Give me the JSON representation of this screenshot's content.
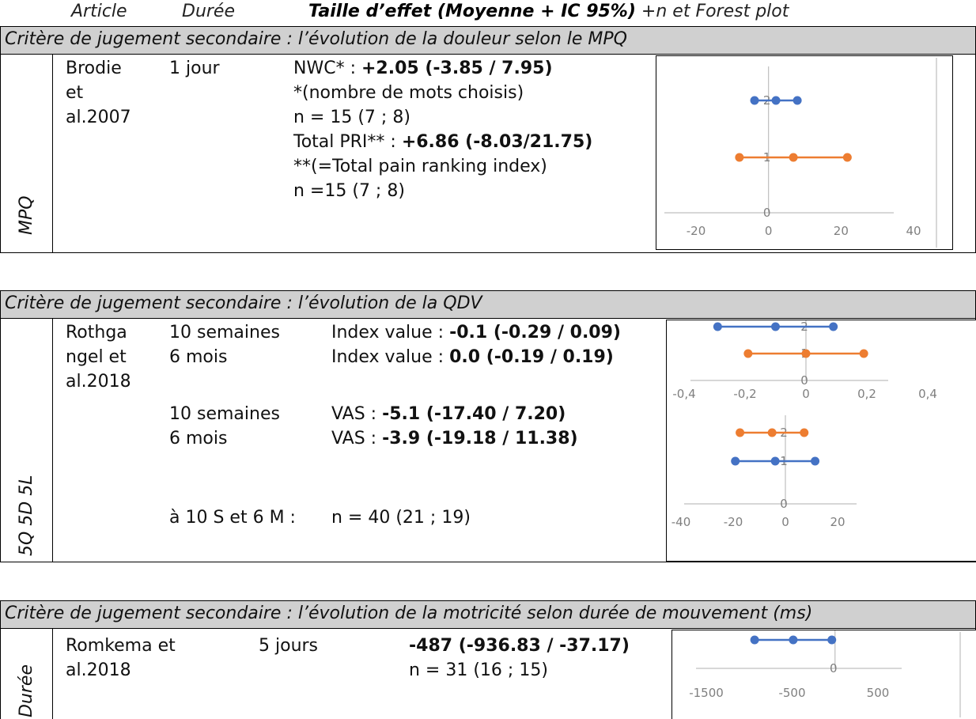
{
  "header": {
    "article": "Article",
    "duree": "Durée",
    "taille": "Taille d’effet (Moyenne + IC 95%)",
    "extra": "+n et Forest plot"
  },
  "sections": [
    {
      "title": "Critère de jugement secondaire : l’évolution de la douleur selon le MPQ",
      "side_label": "MPQ",
      "article_lines": [
        "Brodie",
        "et",
        "al.2007"
      ],
      "duree_lines": [
        "1 jour"
      ],
      "effect": {
        "l1_prefix": "NWC* : ",
        "l1_value": "+2.05 (-3.85 / 7.95)",
        "l2": "*(nombre de mots choisis)",
        "l3": "n = 15 (7 ; 8)",
        "l4_prefix": "Total PRI** : ",
        "l4_value": "+6.86 (-8.03/21.75)",
        "l5": "**(=Total pain ranking index)",
        "l6": "n =15 (7 ; 8)"
      }
    },
    {
      "title": "Critère de jugement secondaire : l’évolution de la QDV",
      "side_label": "5Q 5D 5L",
      "article_lines": [
        "Rothga",
        "ngel  et",
        "al.2018"
      ],
      "rows": [
        {
          "duree": "10 semaines",
          "prefix": "Index value : ",
          "value": "-0.1 (-0.29 / 0.09)"
        },
        {
          "duree": "6 mois",
          "prefix": "Index value : ",
          "value": "0.0 (-0.19 / 0.19)"
        },
        {
          "duree": "10 semaines",
          "prefix": "VAS : ",
          "value": "-5.1 (-17.40 / 7.20)"
        },
        {
          "duree": "6 mois",
          "prefix": "VAS : ",
          "value": "-3.9 (-19.18 / 11.38)"
        }
      ],
      "n_label": "à 10 S et 6 M :",
      "n_value": "n = 40 (21 ; 19)"
    },
    {
      "title": "Critère de jugement secondaire : l’évolution de la motricité selon durée de mouvement (ms)",
      "side_label": "Durée",
      "article": "Romkema      et",
      "article2": "al.2018",
      "duree": "5 jours",
      "value": "-487 (-936.83 / -37.17)",
      "n": "n = 31 (16 ; 15)"
    }
  ],
  "colors": {
    "blue": "#4472c4",
    "orange": "#ed7d31",
    "axis": "#bfbfbf",
    "header_bg": "#d0d0d0"
  },
  "chart_data": [
    {
      "type": "scatter",
      "xlim": [
        -20,
        40
      ],
      "ylim": [
        0,
        2
      ],
      "xticks": [
        "-20",
        "0",
        "20",
        "40"
      ],
      "yticks": [
        "0",
        "1",
        "2"
      ],
      "series": [
        {
          "color": "#4472c4",
          "y": 2,
          "x": [
            -3.85,
            2.05,
            7.95
          ]
        },
        {
          "color": "#ed7d31",
          "y": 1,
          "x": [
            -8.03,
            6.86,
            21.75
          ]
        }
      ]
    },
    {
      "type": "scatter",
      "xlim": [
        -0.4,
        0.4
      ],
      "ylim": [
        0,
        2
      ],
      "xticks": [
        "-0,4",
        "-0,2",
        "0",
        "0,2",
        "0,4"
      ],
      "yticks": [
        "0",
        "1",
        "2"
      ],
      "series": [
        {
          "color": "#4472c4",
          "y": 2,
          "x": [
            -0.29,
            -0.1,
            0.09
          ]
        },
        {
          "color": "#ed7d31",
          "y": 1,
          "x": [
            -0.19,
            0.0,
            0.19
          ]
        }
      ]
    },
    {
      "type": "scatter",
      "xlim": [
        -40,
        20
      ],
      "ylim": [
        0,
        2
      ],
      "xticks": [
        "-40",
        "-20",
        "0",
        "20"
      ],
      "yticks": [
        "0",
        "1",
        "2"
      ],
      "series": [
        {
          "color": "#ed7d31",
          "y": 2,
          "x": [
            -17.4,
            -5.1,
            7.2
          ]
        },
        {
          "color": "#4472c4",
          "y": 1,
          "x": [
            -19.18,
            -3.9,
            11.38
          ]
        }
      ]
    },
    {
      "type": "scatter",
      "xlim": [
        -1500,
        500
      ],
      "ylim": [
        0,
        1
      ],
      "xticks": [
        "-1500",
        "-500",
        "500"
      ],
      "yticks": [
        "0"
      ],
      "series": [
        {
          "color": "#4472c4",
          "y": 1,
          "x": [
            -936.83,
            -487,
            -37.17
          ]
        }
      ]
    }
  ]
}
